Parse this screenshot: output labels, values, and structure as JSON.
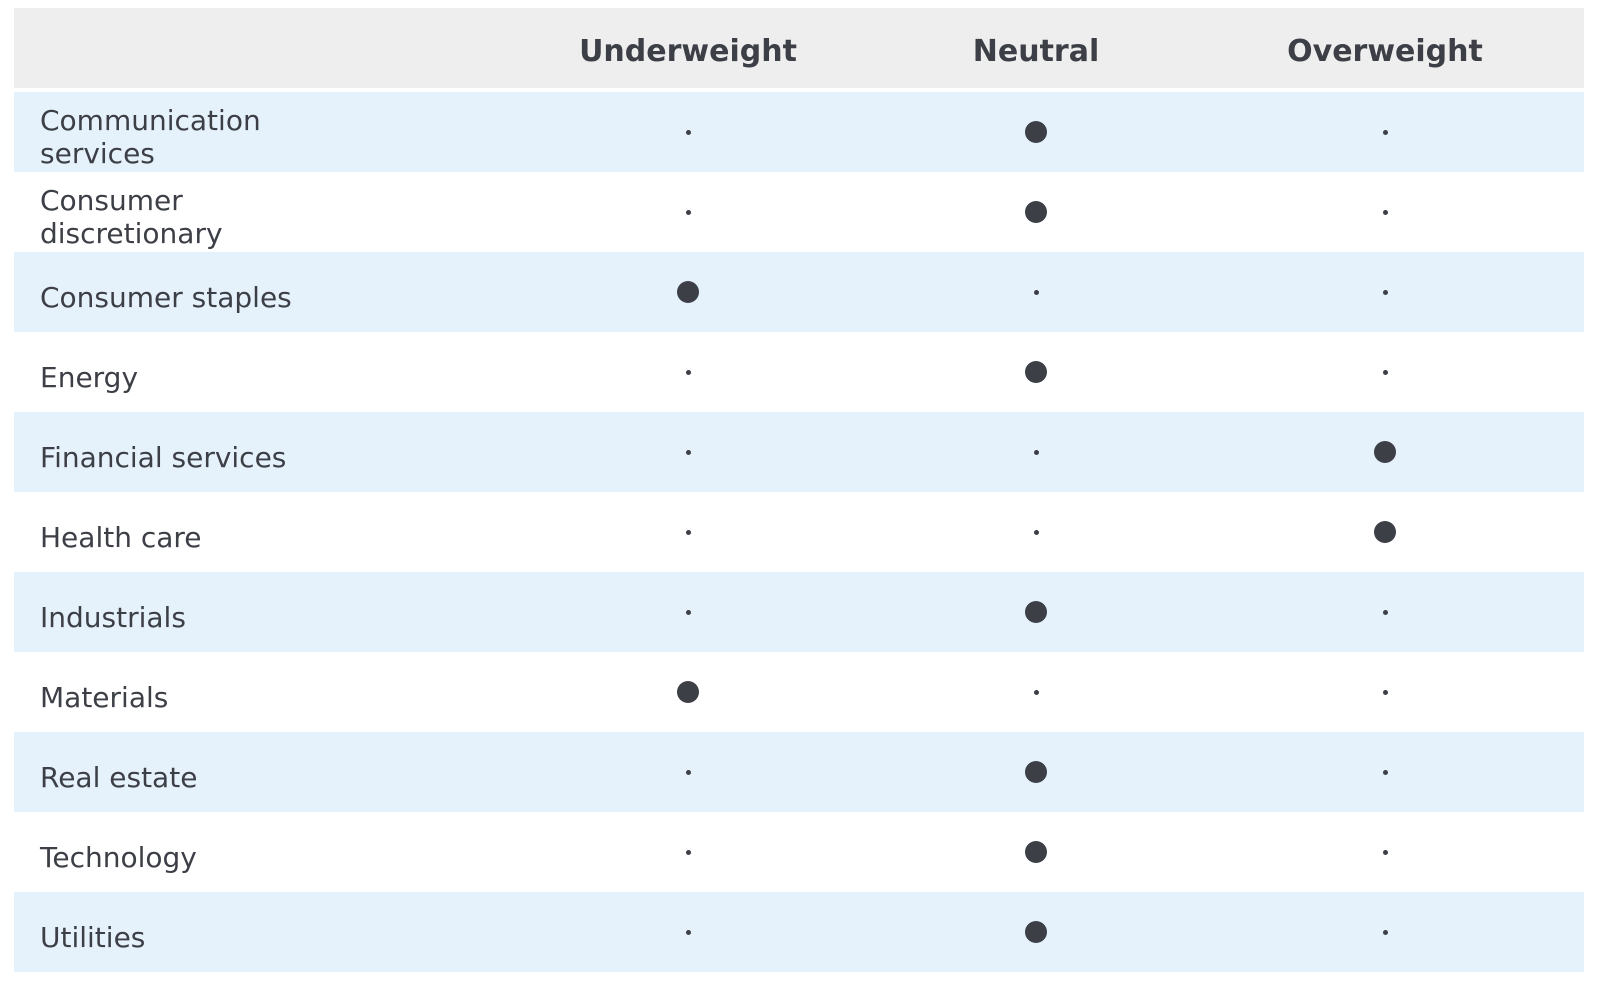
{
  "header": {
    "columns": [
      "Underweight",
      "Neutral",
      "Overweight"
    ]
  },
  "rows": [
    {
      "label": "Communication services",
      "rating": "Neutral"
    },
    {
      "label": "Consumer discretionary",
      "rating": "Neutral"
    },
    {
      "label": "Consumer staples",
      "rating": "Underweight"
    },
    {
      "label": "Energy",
      "rating": "Neutral"
    },
    {
      "label": "Financial services",
      "rating": "Overweight"
    },
    {
      "label": "Health care",
      "rating": "Overweight"
    },
    {
      "label": "Industrials",
      "rating": "Neutral"
    },
    {
      "label": "Materials",
      "rating": "Underweight"
    },
    {
      "label": "Real estate",
      "rating": "Neutral"
    },
    {
      "label": "Technology",
      "rating": "Neutral"
    },
    {
      "label": "Utilities",
      "rating": "Neutral"
    }
  ],
  "colors": {
    "header_bg": "#eeeeee",
    "shaded_row_bg": "#e6f2fb",
    "text": "#3d3f47",
    "dot": "#3d3f47"
  }
}
